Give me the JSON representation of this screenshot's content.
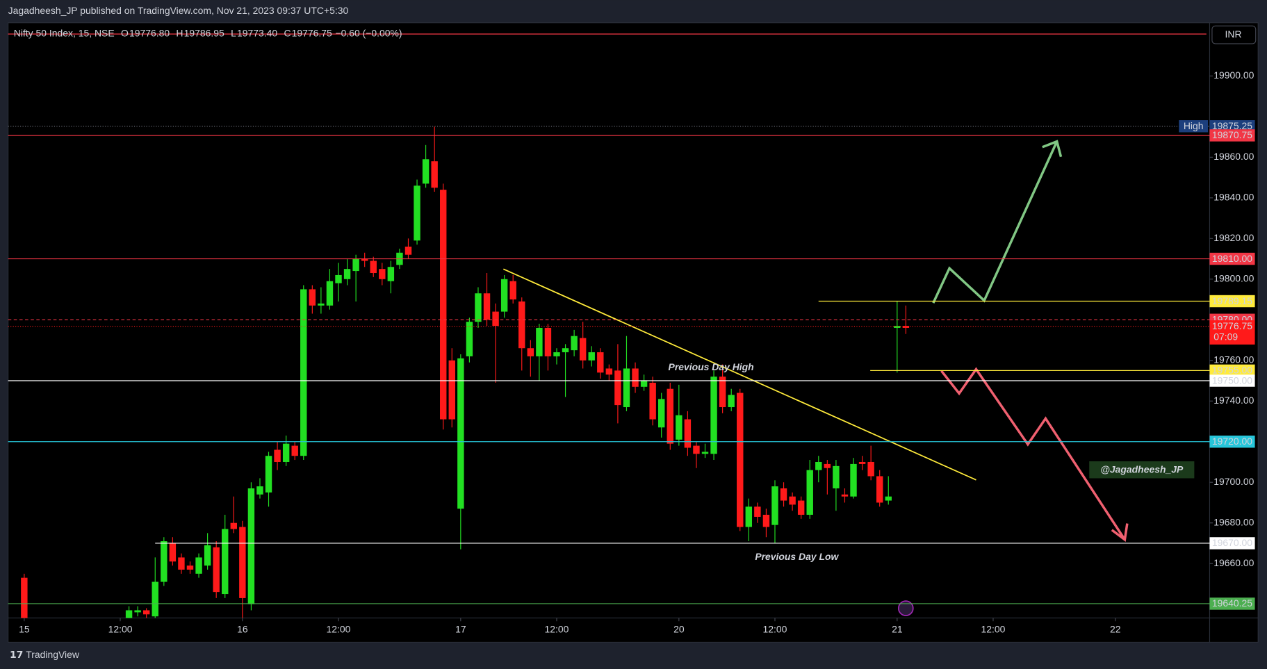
{
  "header": "Jagadheesh_JP published on TradingView.com, Nov 21, 2023 09:37 UTC+5:30",
  "footer": "TradingView",
  "chart_data": {
    "type": "candlestick",
    "title": "Nifty 50 Index, 15, NSE",
    "legend": [
      {
        "key": "O",
        "value": "19776.80"
      },
      {
        "key": "H",
        "value": "19786.95"
      },
      {
        "key": "L",
        "value": "19773.40"
      },
      {
        "key": "C",
        "value": "19776.75"
      }
    ],
    "change": "−0.60 (−0.00%)",
    "currency": "INR",
    "up_color": "#22e022",
    "down_color": "#ff1a1a",
    "open": [
      19653,
      null,
      null,
      null,
      null,
      null,
      null,
      null,
      null,
      null,
      null,
      null,
      19633,
      19636,
      19637,
      19634,
      19651,
      19670,
      19663,
      19659,
      19655,
      19659,
      19668,
      19645,
      19680,
      19678,
      19640,
      19694,
      19695,
      19716,
      19710,
      19718,
      19713,
      19795,
      19787,
      19787,
      19798,
      19800,
      19804,
      19810,
      19809,
      19805,
      19799,
      19807,
      19816,
      19819,
      19847,
      19858,
      19844,
      19760,
      19687,
      19762,
      19779,
      19793,
      19784,
      19784,
      19799,
      19789,
      19766,
      19762,
      19776,
      19762,
      19764,
      19765,
      19771,
      19760,
      19764,
      19756,
      19755,
      19737,
      19756,
      19747,
      19749,
      19727,
      19746,
      19721,
      19731,
      19718,
      19714,
      19714,
      19752,
      19737,
      19744,
      19678,
      19688,
      19684,
      19679,
      19697,
      19693,
      19691,
      19684,
      19706,
      19709,
      19697,
      19694,
      19693,
      19710,
      19710,
      19703,
      19691,
      19776,
      19777
    ],
    "high": [
      19655,
      null,
      null,
      null,
      null,
      null,
      null,
      null,
      null,
      null,
      null,
      null,
      19639,
      19639,
      19638,
      19663,
      19673,
      19673,
      19665,
      19661,
      19665,
      19675,
      19671,
      19684,
      19693,
      19681,
      19700,
      19702,
      19715,
      19720,
      19723,
      19720,
      19797,
      19797,
      19796,
      19805,
      19808,
      19810,
      19812,
      19813,
      19811,
      19808,
      19809,
      19815,
      19820,
      19849,
      19866,
      19875,
      19847,
      19766,
      19763,
      19781,
      19796,
      19803,
      19788,
      19802,
      19802,
      19791,
      19770,
      19778,
      19778,
      19766,
      19768,
      19775,
      19779,
      19767,
      19766,
      19758,
      19768,
      19772,
      19759,
      19753,
      19752,
      19744,
      19749,
      19748,
      19735,
      19720,
      19719,
      19755,
      19758,
      19746,
      19746,
      19692,
      19690,
      19687,
      19701,
      19700,
      19695,
      19693,
      19711,
      19713,
      19711,
      19711,
      19697,
      19712,
      19713,
      19718,
      19706,
      19703,
      19789,
      19787
    ],
    "low": [
      19628,
      null,
      null,
      null,
      null,
      null,
      null,
      null,
      null,
      null,
      null,
      null,
      19632,
      19634,
      19633,
      19632,
      19649,
      19659,
      19655,
      19655,
      19653,
      19657,
      19643,
      19643,
      19675,
      19630,
      19637,
      19692,
      19688,
      19706,
      19708,
      19711,
      19711,
      19783,
      19783,
      19785,
      19789,
      19797,
      19789,
      19806,
      19801,
      19797,
      19793,
      19805,
      19810,
      19817,
      19845,
      19843,
      19726,
      19727,
      19667,
      19759,
      19776,
      19777,
      19749,
      19781,
      19788,
      19755,
      19752,
      19750,
      19755,
      19758,
      19742,
      19762,
      19756,
      19757,
      19751,
      19750,
      19729,
      19735,
      19744,
      19745,
      19728,
      19722,
      19716,
      19718,
      19713,
      19707,
      19712,
      19711,
      19734,
      19735,
      19676,
      19671,
      19680,
      19673,
      19670,
      19688,
      19686,
      19682,
      19682,
      19700,
      19694,
      19686,
      19690,
      19692,
      19706,
      19701,
      19688,
      19689,
      19754,
      19773
    ],
    "close": [
      19633,
      null,
      null,
      null,
      null,
      null,
      null,
      null,
      null,
      null,
      null,
      null,
      19637,
      19637,
      19635,
      19651,
      19671,
      19661,
      19657,
      19657,
      19663,
      19669,
      19646,
      19677,
      19677,
      19643,
      19697,
      19698,
      19713,
      19710,
      19719,
      19713,
      19795,
      19787,
      19788,
      19799,
      19802,
      19805,
      19810,
      19809,
      19803,
      19800,
      19806,
      19813,
      19812,
      19846,
      19859,
      19845,
      19731,
      19731,
      19761,
      19779,
      19793,
      19780,
      19777,
      19800,
      19790,
      19766,
      19762,
      19776,
      19762,
      19764,
      19766,
      19772,
      19760,
      19764,
      19754,
      19753,
      19738,
      19756,
      19747,
      19750,
      19731,
      19741,
      19719,
      19733,
      19717,
      19714,
      19715,
      19752,
      19737,
      19743,
      19678,
      19688,
      19683,
      19678,
      19698,
      19691,
      19689,
      19684,
      19706,
      19710,
      19707,
      19708,
      19693,
      19709,
      19709,
      19703,
      19690,
      19693,
      19777,
      19776
    ],
    "xlim": [
      -1.85,
      135.8
    ],
    "xticks": [
      {
        "value": 0,
        "label": "15"
      },
      {
        "value": 11,
        "label": "12:00"
      },
      {
        "value": 25,
        "label": "16"
      },
      {
        "value": 36,
        "label": "12:00"
      },
      {
        "value": 50,
        "label": "17"
      },
      {
        "value": 61,
        "label": "12:00"
      },
      {
        "value": 75,
        "label": "20"
      },
      {
        "value": 86,
        "label": "12:00"
      },
      {
        "value": 100,
        "label": "21"
      },
      {
        "value": 111,
        "label": "12:00"
      },
      {
        "value": 125,
        "label": "22"
      }
    ],
    "ylim": [
      19633.2,
      19926.2
    ],
    "yticks": [
      {
        "value": 19660,
        "label": "19660.00"
      },
      {
        "value": 19680,
        "label": "19680.00"
      },
      {
        "value": 19700,
        "label": "19700.00"
      },
      {
        "value": 19720,
        "label": "19720.00"
      },
      {
        "value": 19740,
        "label": "19740.00"
      },
      {
        "value": 19760,
        "label": "19760.00"
      },
      {
        "value": 19780,
        "label": "19780.00"
      },
      {
        "value": 19800,
        "label": "19800.00"
      },
      {
        "value": 19820,
        "label": "19820.00"
      },
      {
        "value": 19840,
        "label": "19840.00"
      },
      {
        "value": 19860,
        "label": "19860.00"
      },
      {
        "value": 19900,
        "label": "19900.00"
      }
    ],
    "levels": [
      {
        "value": 19875.25,
        "color": "#1c3f7d",
        "tag": "High"
      },
      {
        "value": 19870.75,
        "color": "#f23645"
      },
      {
        "value": {
          "value": 19810,
          "label": "19810.00"
        },
        "color": "#f23645"
      },
      {
        "value": 19789.15,
        "color": "#ffeb3b"
      },
      {
        "value": {
          "value": 19780,
          "label": "19780.00"
        },
        "color": "#f23645"
      },
      {
        "value": 19776.75,
        "color": "#ff1a1a",
        "tag": "07:09"
      },
      {
        "value": {
          "value": 19755,
          "label": "19755.00"
        },
        "color": "#ffeb3b"
      },
      {
        "value": {
          "value": 19750,
          "label": "19750.00"
        },
        "color": "#ffffff"
      },
      {
        "value": {
          "value": 19720,
          "label": "19720.00"
        },
        "color": "#26c6da"
      },
      {
        "value": {
          "value": 19670,
          "label": "19670.00"
        },
        "color": "#ffffff"
      },
      {
        "value": 19640.25,
        "color": "#4caf50"
      }
    ],
    "annotations": [
      "Previous Day High",
      "Previous Day Low"
    ],
    "watermark": "@Jagadheesh_JP"
  }
}
